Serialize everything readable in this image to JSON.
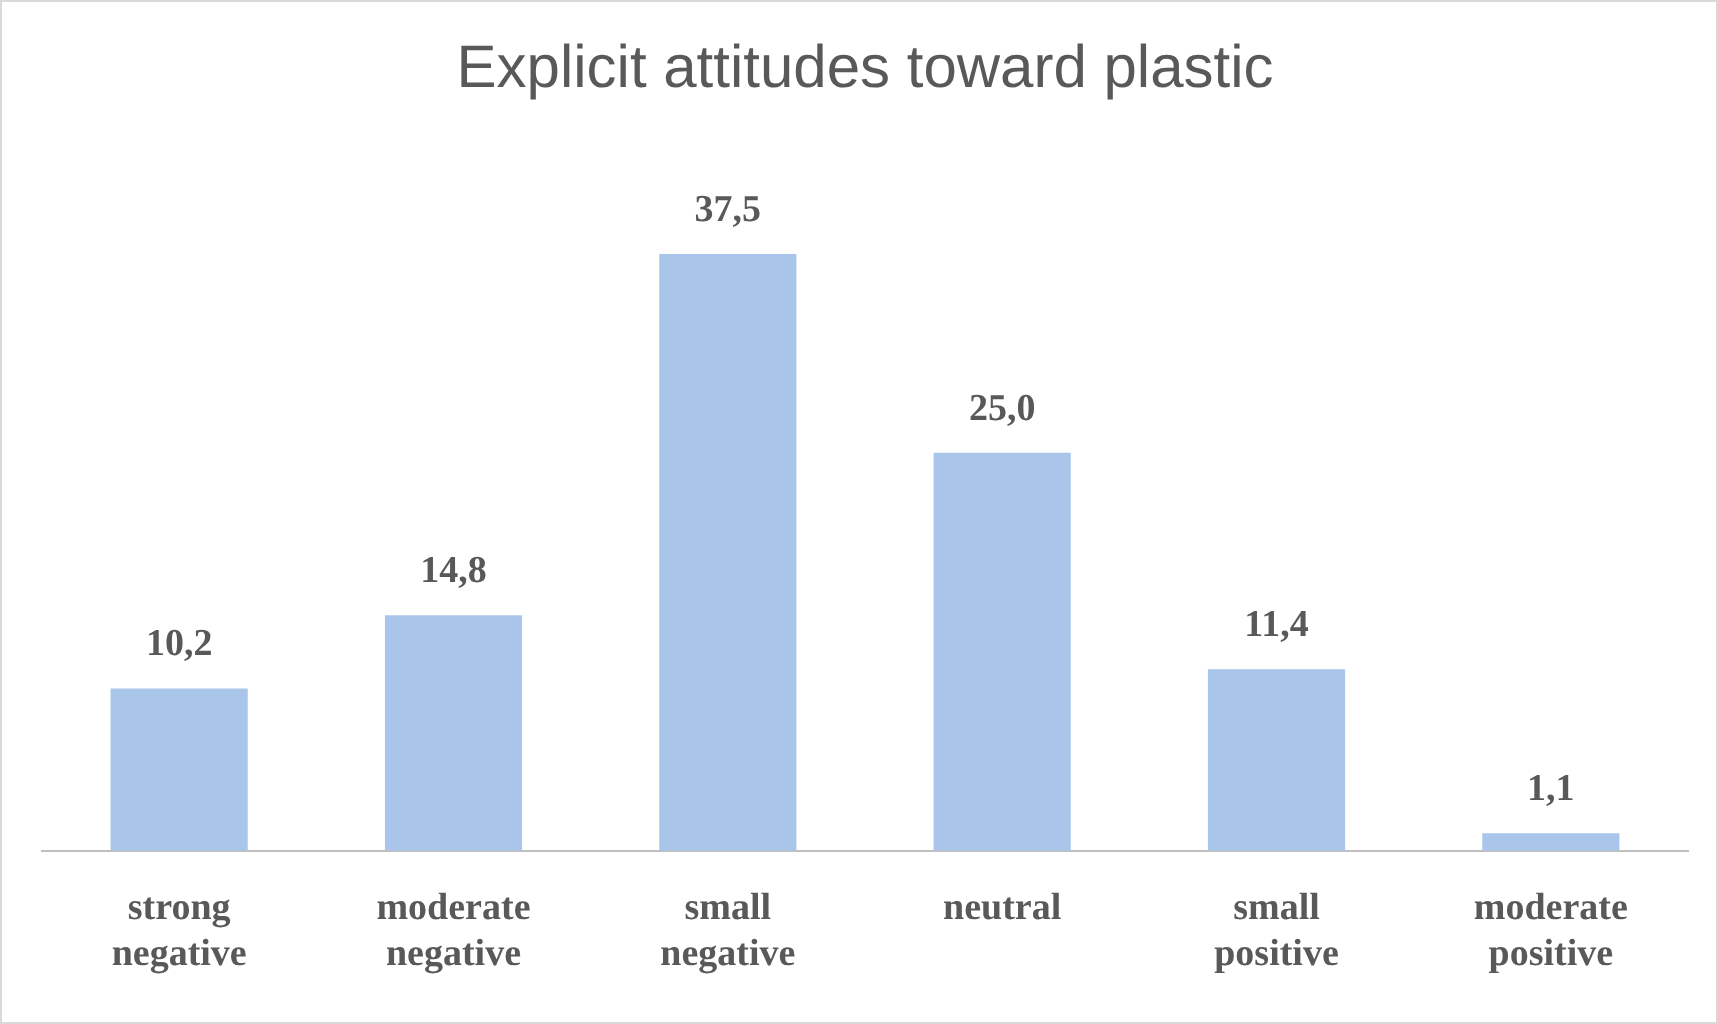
{
  "chart_data": {
    "type": "bar",
    "title": "Explicit attitudes toward plastic",
    "categories": [
      "strong negative",
      "moderate negative",
      "small negative",
      "neutral",
      "small positive",
      "moderate positive"
    ],
    "values": [
      10.2,
      14.8,
      37.5,
      25.0,
      11.4,
      1.1
    ],
    "value_labels": [
      "10,2",
      "14,8",
      "37,5",
      "25,0",
      "11,4",
      "1,1"
    ],
    "color": "#a9c6ea",
    "grid": false,
    "legend": false
  }
}
